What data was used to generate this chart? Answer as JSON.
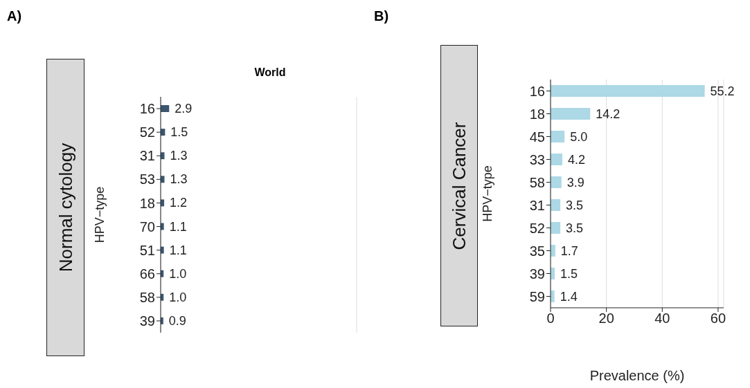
{
  "chart_data": [
    {
      "type": "bar",
      "orientation": "horizontal",
      "title": "World",
      "annotations": [
        "A)",
        "Normal cytology"
      ],
      "ylabel": "HPV−type",
      "categories": [
        "16",
        "52",
        "31",
        "53",
        "18",
        "70",
        "51",
        "66",
        "58",
        "39"
      ],
      "series": [
        {
          "color": "#3b5670",
          "values": [
            2.9,
            1.5,
            1.3,
            1.3,
            1.2,
            1.1,
            1.1,
            1.0,
            1.0,
            0.9
          ],
          "value_labels": [
            "2.9",
            "1.5",
            "1.3",
            "1.3",
            "1.2",
            "1.1",
            "1.1",
            "1.0",
            "1.0",
            "0.9"
          ]
        }
      ],
      "xlim": [
        0,
        67
      ],
      "tick_labels": "y",
      "grid": "x",
      "legend": false
    },
    {
      "type": "bar",
      "orientation": "horizontal",
      "annotations": [
        "B)",
        "Cervical Cancer"
      ],
      "ylabel": "HPV−type",
      "xlabel": "Prevalence (%)",
      "categories": [
        "16",
        "18",
        "45",
        "33",
        "58",
        "31",
        "52",
        "35",
        "39",
        "59"
      ],
      "series": [
        {
          "color": "#add8e6",
          "values": [
            55.2,
            14.2,
            5.0,
            4.2,
            3.9,
            3.5,
            3.5,
            1.7,
            1.5,
            1.4
          ],
          "value_labels": [
            "55.2",
            "14.2",
            "5.0",
            "4.2",
            "3.9",
            "3.5",
            "3.5",
            "1.7",
            "1.5",
            "1.4"
          ]
        }
      ],
      "xlim": [
        0,
        62
      ],
      "xticks": [
        0,
        20,
        40,
        60
      ],
      "grid": "x",
      "legend": false
    }
  ]
}
